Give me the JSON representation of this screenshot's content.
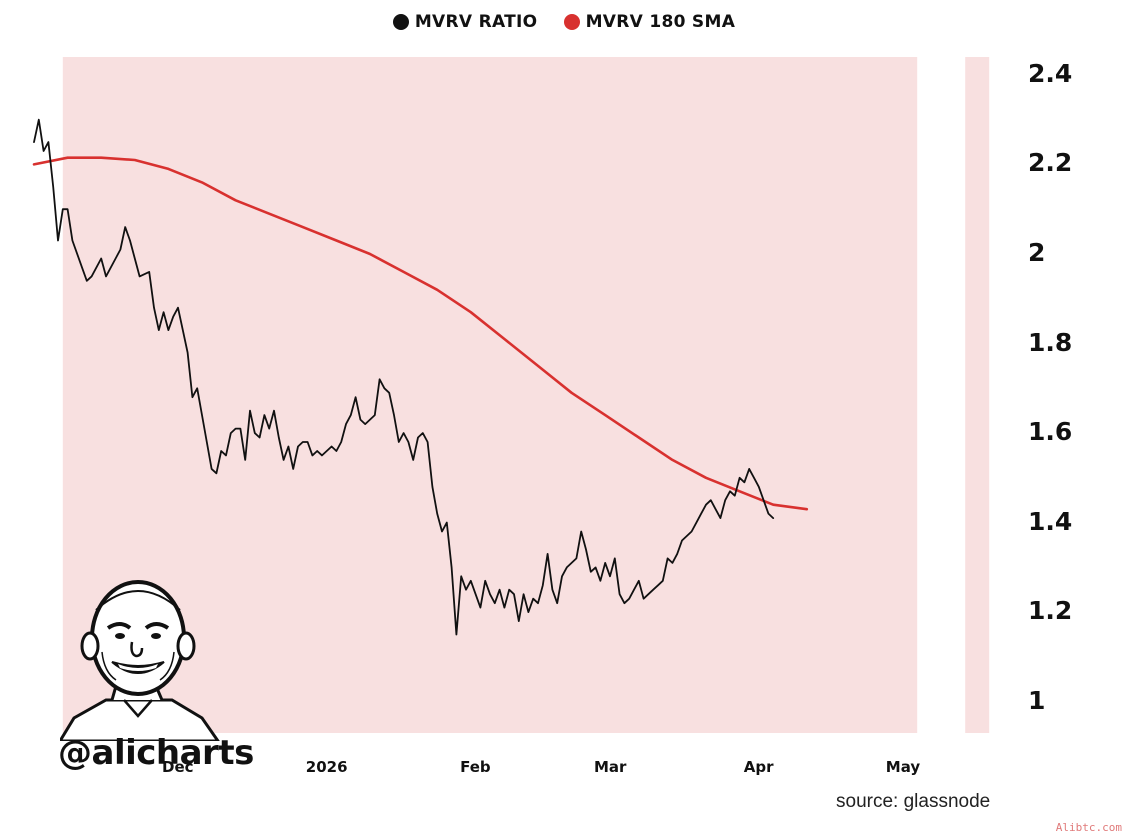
{
  "legend": [
    {
      "label": "MVRV RATIO",
      "color": "#111111"
    },
    {
      "label": "MVRV 180 SMA",
      "color": "#d8312f"
    }
  ],
  "handle": "@alicharts",
  "source": "source: glassnode",
  "watermark": "Alibtc.com",
  "colors": {
    "band": "#f8e0e0",
    "ratio": "#111111",
    "sma": "#d8312f"
  },
  "chart_data": {
    "type": "line",
    "x_unit": "date",
    "ylim": [
      0.93,
      2.44
    ],
    "yticks": [
      {
        "v": 1.0,
        "label": "1"
      },
      {
        "v": 1.2,
        "label": "1.2"
      },
      {
        "v": 1.4,
        "label": "1.4"
      },
      {
        "v": 1.6,
        "label": "1.6"
      },
      {
        "v": 1.8,
        "label": "1.8"
      },
      {
        "v": 2.0,
        "label": "2"
      },
      {
        "v": 2.2,
        "label": "2.2"
      },
      {
        "v": 2.4,
        "label": "2.4"
      }
    ],
    "xlim": [
      "2025-11-01",
      "2026-05-20"
    ],
    "xticks": [
      {
        "date": "2025-12-01",
        "label": "Dec"
      },
      {
        "date": "2026-01-01",
        "label": "2026"
      },
      {
        "date": "2026-02-01",
        "label": "Feb"
      },
      {
        "date": "2026-03-01",
        "label": "Mar"
      },
      {
        "date": "2026-04-01",
        "label": "Apr"
      },
      {
        "date": "2026-05-01",
        "label": "May"
      }
    ],
    "shaded_regions": [
      {
        "start": "2025-11-07",
        "end": "2026-05-04"
      },
      {
        "start": "2026-05-14",
        "end": "2026-05-19"
      }
    ],
    "series": [
      {
        "name": "MVRV RATIO",
        "color": "#111111",
        "points": [
          [
            "2025-11-01",
            2.25
          ],
          [
            "2025-11-02",
            2.3
          ],
          [
            "2025-11-03",
            2.23
          ],
          [
            "2025-11-04",
            2.25
          ],
          [
            "2025-11-05",
            2.15
          ],
          [
            "2025-11-06",
            2.03
          ],
          [
            "2025-11-07",
            2.1
          ],
          [
            "2025-11-08",
            2.1
          ],
          [
            "2025-11-09",
            2.03
          ],
          [
            "2025-11-11",
            1.97
          ],
          [
            "2025-11-12",
            1.94
          ],
          [
            "2025-11-13",
            1.95
          ],
          [
            "2025-11-15",
            1.99
          ],
          [
            "2025-11-16",
            1.95
          ],
          [
            "2025-11-18",
            1.99
          ],
          [
            "2025-11-19",
            2.01
          ],
          [
            "2025-11-20",
            2.06
          ],
          [
            "2025-11-21",
            2.03
          ],
          [
            "2025-11-22",
            1.99
          ],
          [
            "2025-11-23",
            1.95
          ],
          [
            "2025-11-25",
            1.96
          ],
          [
            "2025-11-26",
            1.88
          ],
          [
            "2025-11-27",
            1.83
          ],
          [
            "2025-11-28",
            1.87
          ],
          [
            "2025-11-29",
            1.83
          ],
          [
            "2025-11-30",
            1.86
          ],
          [
            "2025-12-01",
            1.88
          ],
          [
            "2025-12-02",
            1.83
          ],
          [
            "2025-12-03",
            1.78
          ],
          [
            "2025-12-04",
            1.68
          ],
          [
            "2025-12-05",
            1.7
          ],
          [
            "2025-12-06",
            1.64
          ],
          [
            "2025-12-07",
            1.58
          ],
          [
            "2025-12-08",
            1.52
          ],
          [
            "2025-12-09",
            1.51
          ],
          [
            "2025-12-10",
            1.56
          ],
          [
            "2025-12-11",
            1.55
          ],
          [
            "2025-12-12",
            1.6
          ],
          [
            "2025-12-13",
            1.61
          ],
          [
            "2025-12-14",
            1.61
          ],
          [
            "2025-12-15",
            1.54
          ],
          [
            "2025-12-16",
            1.65
          ],
          [
            "2025-12-17",
            1.6
          ],
          [
            "2025-12-18",
            1.59
          ],
          [
            "2025-12-19",
            1.64
          ],
          [
            "2025-12-20",
            1.61
          ],
          [
            "2025-12-21",
            1.65
          ],
          [
            "2025-12-22",
            1.59
          ],
          [
            "2025-12-23",
            1.54
          ],
          [
            "2025-12-24",
            1.57
          ],
          [
            "2025-12-25",
            1.52
          ],
          [
            "2025-12-26",
            1.57
          ],
          [
            "2025-12-27",
            1.58
          ],
          [
            "2025-12-28",
            1.58
          ],
          [
            "2025-12-29",
            1.55
          ],
          [
            "2025-12-30",
            1.56
          ],
          [
            "2025-12-31",
            1.55
          ],
          [
            "2026-01-02",
            1.57
          ],
          [
            "2026-01-03",
            1.56
          ],
          [
            "2026-01-04",
            1.58
          ],
          [
            "2026-01-05",
            1.62
          ],
          [
            "2026-01-06",
            1.64
          ],
          [
            "2026-01-07",
            1.68
          ],
          [
            "2026-01-08",
            1.63
          ],
          [
            "2026-01-09",
            1.62
          ],
          [
            "2026-01-10",
            1.63
          ],
          [
            "2026-01-11",
            1.64
          ],
          [
            "2026-01-12",
            1.72
          ],
          [
            "2026-01-13",
            1.7
          ],
          [
            "2026-01-14",
            1.69
          ],
          [
            "2026-01-15",
            1.64
          ],
          [
            "2026-01-16",
            1.58
          ],
          [
            "2026-01-17",
            1.6
          ],
          [
            "2026-01-18",
            1.58
          ],
          [
            "2026-01-19",
            1.54
          ],
          [
            "2026-01-20",
            1.59
          ],
          [
            "2026-01-21",
            1.6
          ],
          [
            "2026-01-22",
            1.58
          ],
          [
            "2026-01-23",
            1.48
          ],
          [
            "2026-01-24",
            1.42
          ],
          [
            "2026-01-25",
            1.38
          ],
          [
            "2026-01-26",
            1.4
          ],
          [
            "2026-01-27",
            1.3
          ],
          [
            "2026-01-28",
            1.15
          ],
          [
            "2026-01-29",
            1.28
          ],
          [
            "2026-01-30",
            1.25
          ],
          [
            "2026-01-31",
            1.27
          ],
          [
            "2026-02-01",
            1.24
          ],
          [
            "2026-02-02",
            1.21
          ],
          [
            "2026-02-03",
            1.27
          ],
          [
            "2026-02-04",
            1.24
          ],
          [
            "2026-02-05",
            1.22
          ],
          [
            "2026-02-06",
            1.25
          ],
          [
            "2026-02-07",
            1.21
          ],
          [
            "2026-02-08",
            1.25
          ],
          [
            "2026-02-09",
            1.24
          ],
          [
            "2026-02-10",
            1.18
          ],
          [
            "2026-02-11",
            1.24
          ],
          [
            "2026-02-12",
            1.2
          ],
          [
            "2026-02-13",
            1.23
          ],
          [
            "2026-02-14",
            1.22
          ],
          [
            "2026-02-15",
            1.26
          ],
          [
            "2026-02-16",
            1.33
          ],
          [
            "2026-02-17",
            1.25
          ],
          [
            "2026-02-18",
            1.22
          ],
          [
            "2026-02-19",
            1.28
          ],
          [
            "2026-02-20",
            1.3
          ],
          [
            "2026-02-21",
            1.31
          ],
          [
            "2026-02-22",
            1.32
          ],
          [
            "2026-02-23",
            1.38
          ],
          [
            "2026-02-24",
            1.34
          ],
          [
            "2026-02-25",
            1.29
          ],
          [
            "2026-02-26",
            1.3
          ],
          [
            "2026-02-27",
            1.27
          ],
          [
            "2026-02-28",
            1.31
          ],
          [
            "2026-03-01",
            1.28
          ],
          [
            "2026-03-02",
            1.32
          ],
          [
            "2026-03-03",
            1.24
          ],
          [
            "2026-03-04",
            1.22
          ],
          [
            "2026-03-05",
            1.23
          ],
          [
            "2026-03-06",
            1.25
          ],
          [
            "2026-03-07",
            1.27
          ],
          [
            "2026-03-08",
            1.23
          ],
          [
            "2026-03-09",
            1.24
          ],
          [
            "2026-03-10",
            1.25
          ],
          [
            "2026-03-11",
            1.26
          ],
          [
            "2026-03-12",
            1.27
          ],
          [
            "2026-03-13",
            1.32
          ],
          [
            "2026-03-14",
            1.31
          ],
          [
            "2026-03-15",
            1.33
          ],
          [
            "2026-03-16",
            1.36
          ],
          [
            "2026-03-17",
            1.37
          ],
          [
            "2026-03-18",
            1.38
          ],
          [
            "2026-03-19",
            1.4
          ],
          [
            "2026-03-20",
            1.42
          ],
          [
            "2026-03-21",
            1.44
          ],
          [
            "2026-03-22",
            1.45
          ],
          [
            "2026-03-23",
            1.43
          ],
          [
            "2026-03-24",
            1.41
          ],
          [
            "2026-03-25",
            1.45
          ],
          [
            "2026-03-26",
            1.47
          ],
          [
            "2026-03-27",
            1.46
          ],
          [
            "2026-03-28",
            1.5
          ],
          [
            "2026-03-29",
            1.49
          ],
          [
            "2026-03-30",
            1.52
          ],
          [
            "2026-03-31",
            1.5
          ],
          [
            "2026-04-01",
            1.48
          ],
          [
            "2026-04-02",
            1.45
          ],
          [
            "2026-04-03",
            1.42
          ],
          [
            "2026-04-04",
            1.41
          ]
        ]
      },
      {
        "name": "MVRV 180 SMA",
        "color": "#d8312f",
        "points": [
          [
            "2025-11-01",
            2.2
          ],
          [
            "2025-11-08",
            2.215
          ],
          [
            "2025-11-15",
            2.215
          ],
          [
            "2025-11-22",
            2.21
          ],
          [
            "2025-11-29",
            2.19
          ],
          [
            "2025-12-06",
            2.16
          ],
          [
            "2025-12-13",
            2.12
          ],
          [
            "2025-12-20",
            2.09
          ],
          [
            "2025-12-27",
            2.06
          ],
          [
            "2026-01-03",
            2.03
          ],
          [
            "2026-01-10",
            2.0
          ],
          [
            "2026-01-17",
            1.96
          ],
          [
            "2026-01-24",
            1.92
          ],
          [
            "2026-01-31",
            1.87
          ],
          [
            "2026-02-07",
            1.81
          ],
          [
            "2026-02-14",
            1.75
          ],
          [
            "2026-02-21",
            1.69
          ],
          [
            "2026-02-28",
            1.64
          ],
          [
            "2026-03-07",
            1.59
          ],
          [
            "2026-03-14",
            1.54
          ],
          [
            "2026-03-21",
            1.5
          ],
          [
            "2026-03-28",
            1.47
          ],
          [
            "2026-04-04",
            1.44
          ],
          [
            "2026-04-11",
            1.43
          ]
        ]
      }
    ]
  }
}
